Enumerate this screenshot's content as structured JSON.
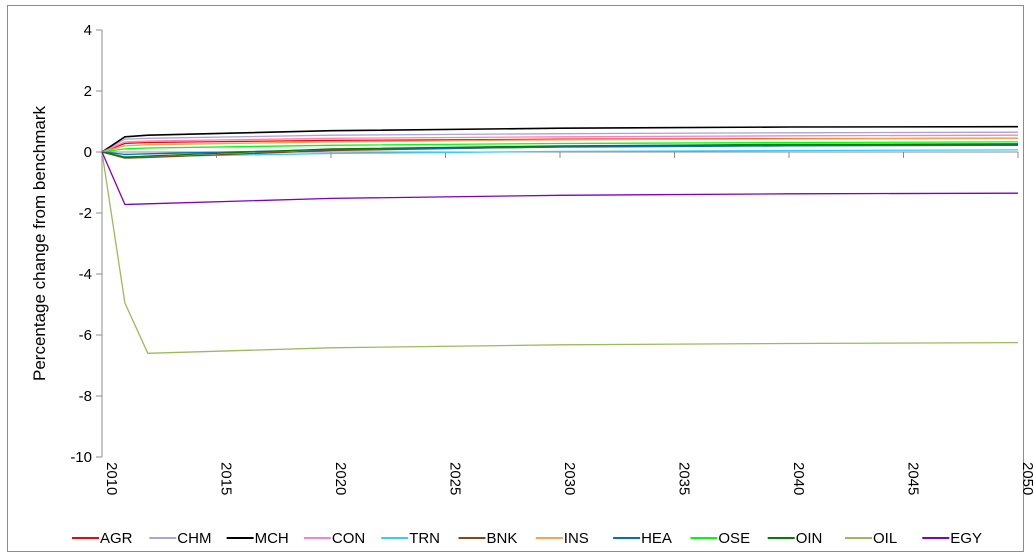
{
  "chart_data": {
    "type": "line",
    "title": "",
    "xlabel": "",
    "ylabel": "Percentage change from benchmark",
    "xlim": [
      2010,
      2050
    ],
    "ylim": [
      -10,
      4
    ],
    "xticks": [
      2010,
      2015,
      2020,
      2025,
      2030,
      2035,
      2040,
      2045,
      2050
    ],
    "yticks": [
      -10,
      -8,
      -6,
      -4,
      -2,
      0,
      2,
      4
    ],
    "grid": false,
    "legend_position": "bottom",
    "series": [
      {
        "name": "AGR",
        "color": "#ff0000",
        "x": [
          2010,
          2011,
          2012,
          2020,
          2030,
          2040,
          2050
        ],
        "y": [
          0,
          0.28,
          0.31,
          0.38,
          0.42,
          0.44,
          0.45
        ]
      },
      {
        "name": "CHM",
        "color": "#a9a3d6",
        "x": [
          2010,
          2011,
          2012,
          2020,
          2030,
          2040,
          2050
        ],
        "y": [
          0,
          0.42,
          0.45,
          0.55,
          0.6,
          0.63,
          0.65
        ]
      },
      {
        "name": "MCH",
        "color": "#000000",
        "x": [
          2010,
          2011,
          2012,
          2020,
          2030,
          2040,
          2050
        ],
        "y": [
          0,
          0.5,
          0.55,
          0.7,
          0.78,
          0.82,
          0.83
        ]
      },
      {
        "name": "CON",
        "color": "#ff80c0",
        "x": [
          2010,
          2011,
          2012,
          2020,
          2030,
          2040,
          2050
        ],
        "y": [
          0,
          0.33,
          0.36,
          0.45,
          0.5,
          0.53,
          0.55
        ]
      },
      {
        "name": "TRN",
        "color": "#33ccff",
        "x": [
          2010,
          2011,
          2012,
          2020,
          2030,
          2040,
          2050
        ],
        "y": [
          0,
          -0.15,
          -0.15,
          -0.05,
          0.02,
          0.05,
          0.07
        ]
      },
      {
        "name": "BNK",
        "color": "#8b4513",
        "x": [
          2010,
          2011,
          2012,
          2020,
          2030,
          2040,
          2050
        ],
        "y": [
          0,
          -0.2,
          -0.18,
          0.05,
          0.17,
          0.22,
          0.25
        ]
      },
      {
        "name": "INS",
        "color": "#ffa050",
        "x": [
          2010,
          2011,
          2012,
          2020,
          2030,
          2040,
          2050
        ],
        "y": [
          0,
          0.2,
          0.24,
          0.33,
          0.4,
          0.43,
          0.45
        ]
      },
      {
        "name": "HEA",
        "color": "#0070c0",
        "x": [
          2010,
          2011,
          2012,
          2020,
          2030,
          2040,
          2050
        ],
        "y": [
          0,
          -0.08,
          -0.06,
          0.08,
          0.16,
          0.2,
          0.22
        ]
      },
      {
        "name": "OSE",
        "color": "#00ff00",
        "x": [
          2010,
          2011,
          2012,
          2020,
          2030,
          2040,
          2050
        ],
        "y": [
          0,
          0.1,
          0.13,
          0.22,
          0.28,
          0.31,
          0.33
        ]
      },
      {
        "name": "OIN",
        "color": "#008000",
        "x": [
          2010,
          2011,
          2012,
          2020,
          2030,
          2040,
          2050
        ],
        "y": [
          0,
          -0.17,
          -0.13,
          0.1,
          0.2,
          0.25,
          0.27
        ]
      },
      {
        "name": "OIL",
        "color": "#9bbb59",
        "x": [
          2010,
          2011,
          2012,
          2020,
          2030,
          2040,
          2050
        ],
        "y": [
          0,
          -4.95,
          -6.6,
          -6.42,
          -6.32,
          -6.28,
          -6.25
        ]
      },
      {
        "name": "EGY",
        "color": "#8000c0",
        "x": [
          2010,
          2011,
          2012,
          2020,
          2030,
          2040,
          2050
        ],
        "y": [
          0,
          -1.72,
          -1.7,
          -1.52,
          -1.42,
          -1.37,
          -1.35
        ]
      }
    ]
  }
}
